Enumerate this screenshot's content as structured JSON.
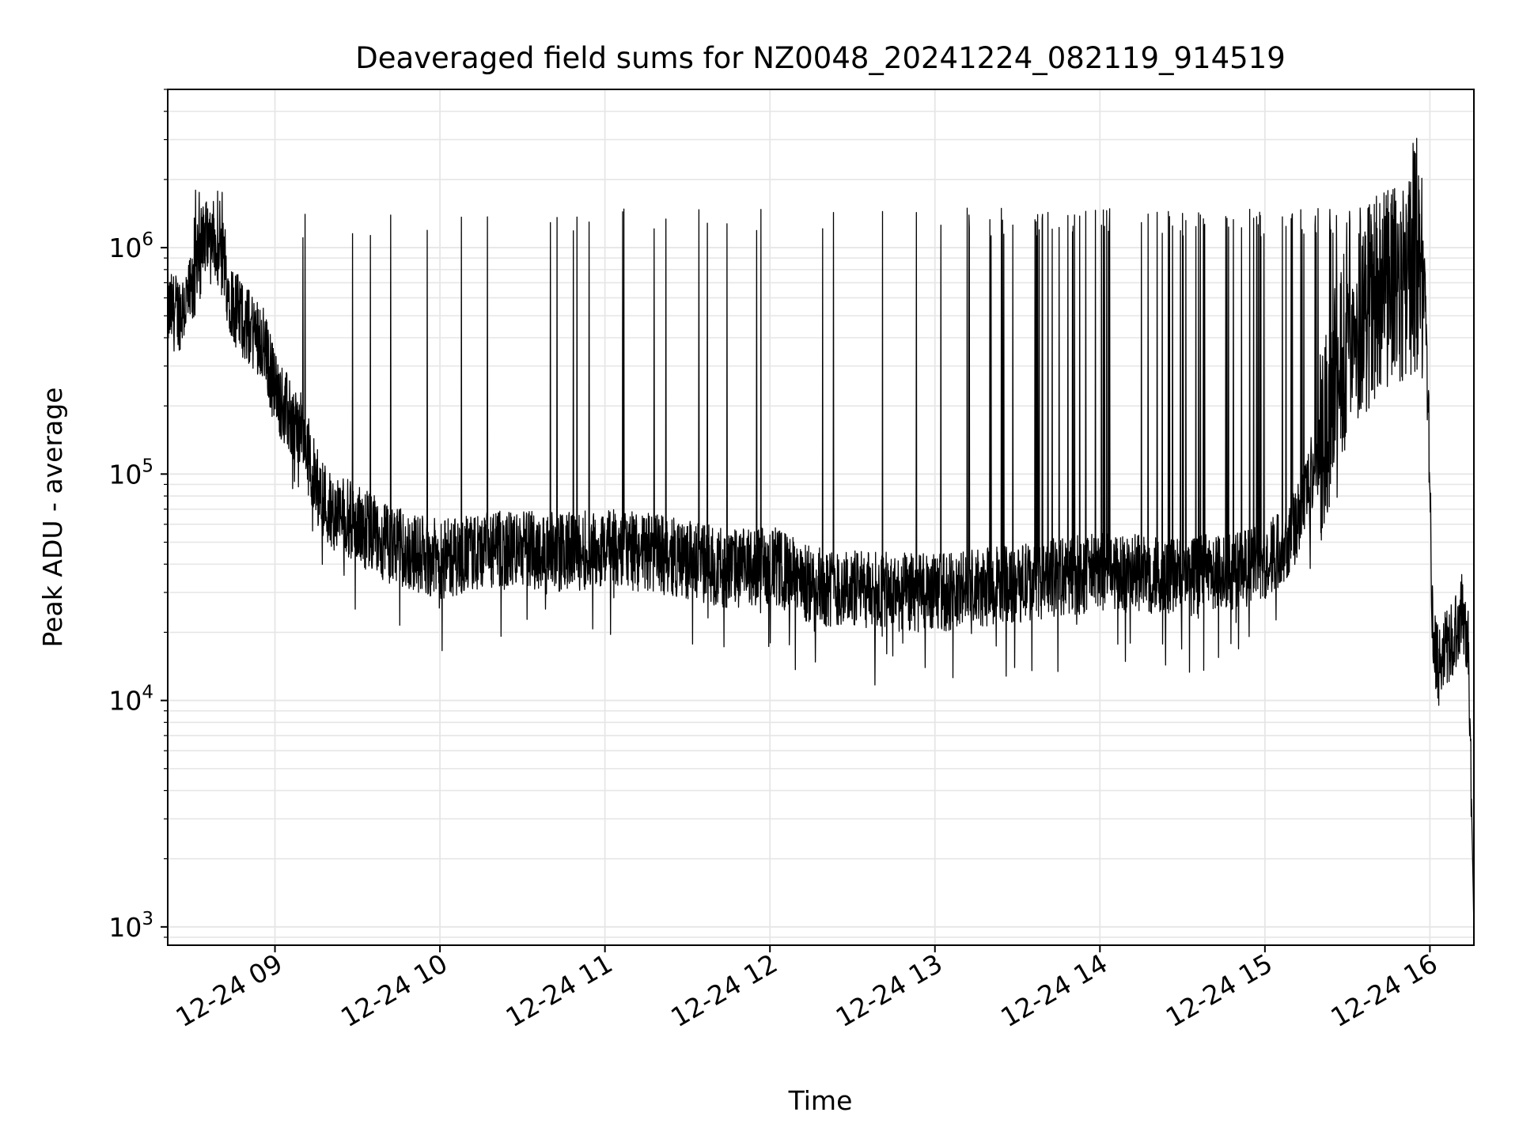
{
  "chart_data": {
    "type": "line",
    "title": "Deaveraged field sums for NZ0048_20241224_082119_914519",
    "xlabel": "Time",
    "ylabel": "Peak ADU - average",
    "yscale": "log",
    "ylim": [
      830,
      5000000
    ],
    "xlim": [
      "2024-12-24 08:21",
      "2024-12-24 16:16"
    ],
    "x_ticks": [
      {
        "value": "2024-12-24 09:00",
        "label": "12-24 09"
      },
      {
        "value": "2024-12-24 10:00",
        "label": "12-24 10"
      },
      {
        "value": "2024-12-24 11:00",
        "label": "12-24 11"
      },
      {
        "value": "2024-12-24 12:00",
        "label": "12-24 12"
      },
      {
        "value": "2024-12-24 13:00",
        "label": "12-24 13"
      },
      {
        "value": "2024-12-24 14:00",
        "label": "12-24 14"
      },
      {
        "value": "2024-12-24 15:00",
        "label": "12-24 15"
      },
      {
        "value": "2024-12-24 16:00",
        "label": "12-24 16"
      }
    ],
    "y_ticks": [
      {
        "value": 1000,
        "base": "10",
        "exp": "3"
      },
      {
        "value": 10000,
        "base": "10",
        "exp": "4"
      },
      {
        "value": 100000,
        "base": "10",
        "exp": "5"
      },
      {
        "value": 1000000,
        "base": "10",
        "exp": "6"
      }
    ],
    "grid": true,
    "line_color": "#000000",
    "grid_color": "#e6e6e6",
    "series": [
      {
        "x": [
          "2024-12-24 08:21",
          "2024-12-24 08:25",
          "2024-12-24 08:30",
          "2024-12-24 08:35",
          "2024-12-24 08:40",
          "2024-12-24 08:45",
          "2024-12-24 08:50",
          "2024-12-24 08:55",
          "2024-12-24 09:00",
          "2024-12-24 09:05",
          "2024-12-24 09:10",
          "2024-12-24 09:15",
          "2024-12-24 09:20",
          "2024-12-24 09:30",
          "2024-12-24 09:40",
          "2024-12-24 09:50",
          "2024-12-24 10:00",
          "2024-12-24 10:15",
          "2024-12-24 10:30",
          "2024-12-24 10:45",
          "2024-12-24 11:00",
          "2024-12-24 11:15",
          "2024-12-24 11:30",
          "2024-12-24 11:45",
          "2024-12-24 12:00",
          "2024-12-24 12:15",
          "2024-12-24 12:30",
          "2024-12-24 12:45",
          "2024-12-24 13:00",
          "2024-12-24 13:15",
          "2024-12-24 13:30",
          "2024-12-24 13:45",
          "2024-12-24 14:00",
          "2024-12-24 14:15",
          "2024-12-24 14:30",
          "2024-12-24 14:45",
          "2024-12-24 15:00",
          "2024-12-24 15:10",
          "2024-12-24 15:20",
          "2024-12-24 15:30",
          "2024-12-24 15:40",
          "2024-12-24 15:50",
          "2024-12-24 15:55",
          "2024-12-24 15:58",
          "2024-12-24 16:00",
          "2024-12-24 16:01",
          "2024-12-24 16:03",
          "2024-12-24 16:06",
          "2024-12-24 16:09",
          "2024-12-24 16:12",
          "2024-12-24 16:14",
          "2024-12-24 16:16"
        ],
        "y": [
          520000,
          520000,
          620000,
          1100000,
          900000,
          550000,
          450000,
          400000,
          240000,
          180000,
          150000,
          90000,
          70000,
          60000,
          50000,
          45000,
          42000,
          45000,
          47000,
          45000,
          47000,
          45000,
          42000,
          38000,
          40000,
          32000,
          31000,
          30000,
          30000,
          31000,
          33000,
          35000,
          37000,
          36000,
          35000,
          37000,
          40000,
          55000,
          130000,
          400000,
          600000,
          700000,
          800000,
          700000,
          100000,
          20000,
          14000,
          17000,
          20000,
          25000,
          18000,
          1000
        ]
      }
    ]
  }
}
